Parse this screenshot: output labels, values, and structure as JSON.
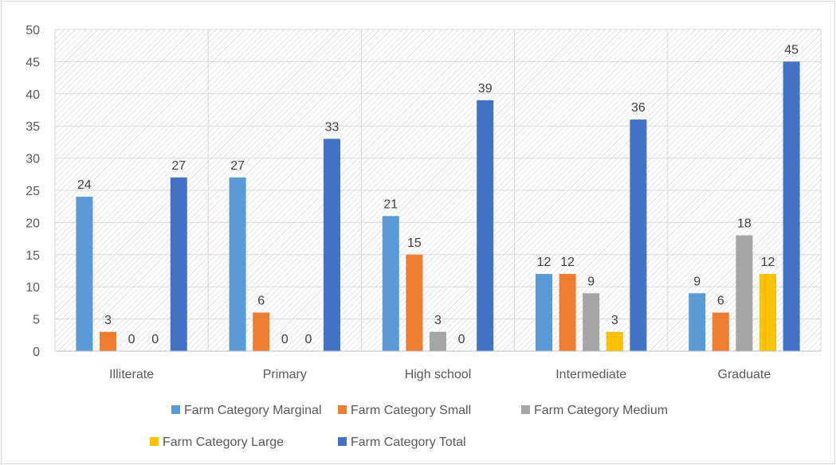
{
  "chart_data": {
    "type": "bar",
    "categories": [
      "Illiterate",
      "Primary",
      "High school",
      "Intermediate",
      "Graduate"
    ],
    "series": [
      {
        "name": "Farm Category Marginal",
        "values": [
          24,
          27,
          21,
          12,
          9
        ],
        "color": "#5b9bd5"
      },
      {
        "name": "Farm Category Small",
        "values": [
          3,
          6,
          15,
          12,
          6
        ],
        "color": "#ed7d31"
      },
      {
        "name": "Farm Category Medium",
        "values": [
          0,
          0,
          3,
          9,
          18
        ],
        "color": "#a5a5a5"
      },
      {
        "name": "Farm Category Large",
        "values": [
          0,
          0,
          0,
          3,
          12
        ],
        "color": "#ffc000"
      },
      {
        "name": "Farm Category Total",
        "values": [
          27,
          33,
          39,
          36,
          45
        ],
        "color": "#4472c4"
      }
    ],
    "data_labels": [
      [
        "24",
        "3",
        "0",
        "0",
        "27"
      ],
      [
        "27",
        "6",
        "0",
        "0",
        "33"
      ],
      [
        "21",
        "15",
        "3",
        "0",
        "39"
      ],
      [
        "12",
        "12",
        "9",
        "3",
        "36"
      ],
      [
        "9",
        "6",
        "18",
        "12",
        "45"
      ]
    ],
    "y_ticks": [
      "0",
      "5",
      "10",
      "15",
      "20",
      "25",
      "30",
      "35",
      "40",
      "45",
      "50"
    ],
    "ylim": [
      0,
      50
    ],
    "grid": true,
    "plot_background": "hatched",
    "legend_position": "bottom"
  }
}
